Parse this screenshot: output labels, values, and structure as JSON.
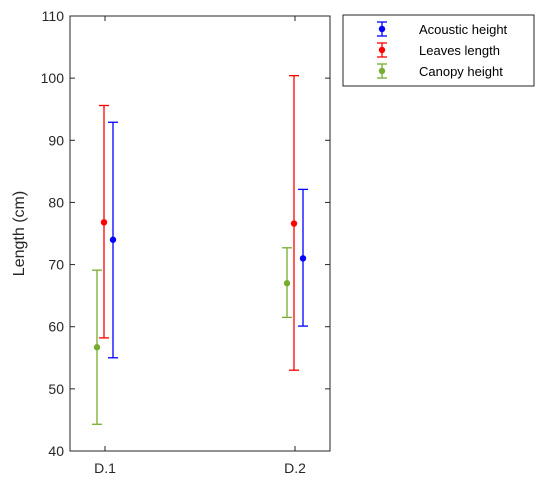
{
  "chart_data": {
    "type": "scatter",
    "title": "",
    "xlabel": "",
    "ylabel": "Length (cm)",
    "categories": [
      "D.1",
      "D.2"
    ],
    "ylim": [
      40,
      110
    ],
    "yticks": [
      40,
      50,
      60,
      70,
      80,
      90,
      100,
      110
    ],
    "grid": false,
    "legend_position": "outside-top-right",
    "series": [
      {
        "name": "Canopy height",
        "color": "#77ac30",
        "values": [
          56.7,
          67.0
        ],
        "lower": [
          44.3,
          61.5
        ],
        "upper": [
          69.1,
          72.7
        ]
      },
      {
        "name": "Leaves length",
        "color": "#ff0000",
        "values": [
          76.8,
          76.6
        ],
        "lower": [
          58.2,
          53.0
        ],
        "upper": [
          95.6,
          100.4
        ]
      },
      {
        "name": "Acoustic height",
        "color": "#0000ff",
        "values": [
          74.0,
          71.0
        ],
        "lower": [
          55.0,
          60.1
        ],
        "upper": [
          92.9,
          82.1
        ]
      }
    ],
    "legend_order": [
      "Acoustic height",
      "Leaves length",
      "Canopy height"
    ]
  }
}
